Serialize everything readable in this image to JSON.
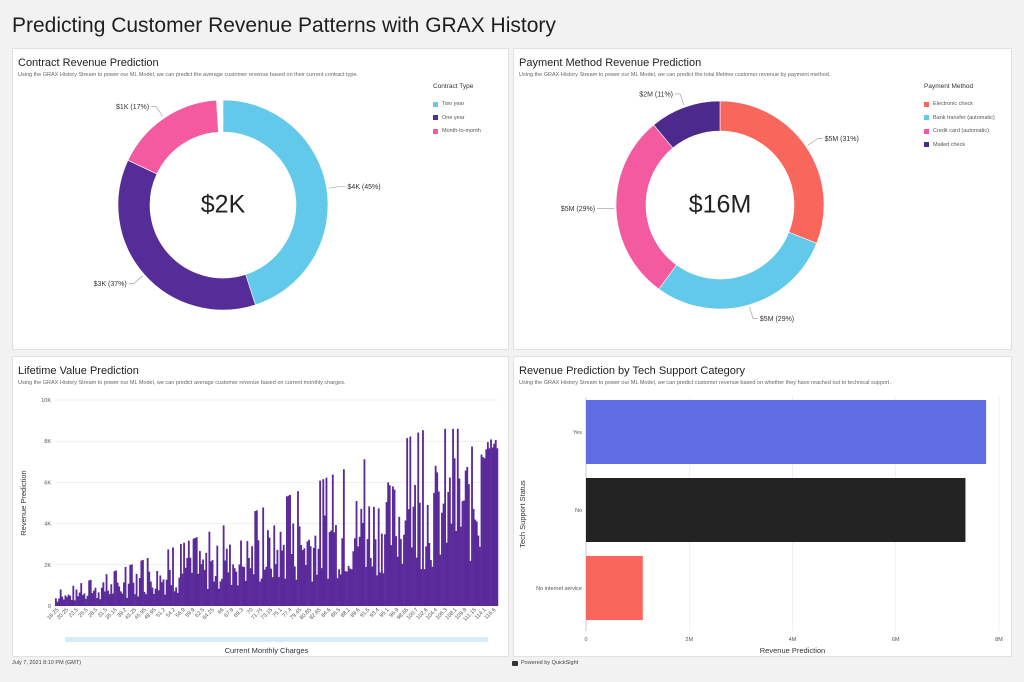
{
  "page": {
    "title": "Predicting Customer Revenue Patterns with GRAX History"
  },
  "footer": {
    "date": "July 7, 2021 8:10 PM (GMT)",
    "powered": "Powered by QuickSight"
  },
  "colors": {
    "teal": "#62c9eb",
    "purple": "#552c98",
    "pink": "#f35aa0",
    "red": "#f8665c",
    "indigo": "#4c2a8c",
    "blue": "#5f6fe3",
    "black": "#232323",
    "lifetime": "#5a2a9a"
  },
  "contract": {
    "title": "Contract Revenue Prediction",
    "subtitle": "Using the GRAX History Stream to power our ML Model, we can predict the average customer revenue based on their current contract type.",
    "legend_title": "Contract Type",
    "center": "$2K"
  },
  "payment": {
    "title": "Payment Method Revenue Prediction",
    "subtitle": "Using the GRAX History Stream to power our ML Model, we can predict the total lifetime customer revenue by payment method.",
    "legend_title": "Payment Method",
    "center": "$16M"
  },
  "lifetime": {
    "title": "Lifetime Value Prediction",
    "subtitle": "Using the GRAX History Stream to power our ML Model, we can predict average customer revenue based on current monthly charges."
  },
  "tech": {
    "title": "Revenue Prediction by Tech Support Category",
    "subtitle": "Using the GRAX History Stream to power our ML Model, we can predict customer revenue based on whether they have reached out to technical support."
  },
  "chart_data": [
    {
      "type": "pie",
      "title": "Contract Revenue Prediction",
      "center_label": "$2K",
      "legend_title": "Contract Type",
      "legend": "right",
      "slices": [
        {
          "name": "Two year",
          "label": "$4K (45%)",
          "percent": 45,
          "color": "#62c9eb"
        },
        {
          "name": "One year",
          "label": "$3K (37%)",
          "percent": 37,
          "color": "#552c98"
        },
        {
          "name": "Month-to-month",
          "label": "$1K (17%)",
          "percent": 17,
          "color": "#f35aa0"
        }
      ]
    },
    {
      "type": "pie",
      "title": "Payment Method Revenue Prediction",
      "center_label": "$16M",
      "legend_title": "Payment Method",
      "legend": "right",
      "slices": [
        {
          "name": "Electronic check",
          "label": "$5M (31%)",
          "percent": 31,
          "color": "#f8665c"
        },
        {
          "name": "Bank transfer (automatic)",
          "label": "$5M (29%)",
          "percent": 29,
          "color": "#62c9eb"
        },
        {
          "name": "Credit card (automatic)",
          "label": "$5M (29%)",
          "percent": 29,
          "color": "#f35aa0"
        },
        {
          "name": "Mailed check",
          "label": "$2M (11%)",
          "percent": 11,
          "color": "#4c2a8c"
        }
      ]
    },
    {
      "type": "bar",
      "title": "Lifetime Value Prediction",
      "xlabel": "Current Monthly Charges",
      "ylabel": "Revenue Prediction",
      "ylim": [
        0,
        10000
      ],
      "yticks": [
        "0",
        "2K",
        "4K",
        "6K",
        "8K",
        "10K"
      ],
      "xlim": [
        18.25,
        118.75
      ],
      "xtick_labels": [
        "18.25",
        "20.25",
        "22.5",
        "25.5",
        "28.5",
        "31.5",
        "35.15",
        "39.2",
        "43.25",
        "45.95",
        "48.95",
        "51.2",
        "54.2",
        "56.9",
        "59.9",
        "62.5",
        "64.25",
        "66",
        "67.9",
        "69.3",
        "70",
        "71.75",
        "73.15",
        "75.1",
        "77.4",
        "79.45",
        "80.85",
        "82.65",
        "84.6",
        "86.5",
        "88.1",
        "89.6",
        "91.5",
        "93.4",
        "95.1",
        "96.9",
        "98.65",
        "100.7",
        "102.6",
        "104.4",
        "106.3",
        "108.1",
        "109.9",
        "111.15",
        "114.1",
        "116.6"
      ],
      "grid": true,
      "trend": {
        "start": 600,
        "end": 8300,
        "min_fraction": 0.25,
        "max_spike": 1.25,
        "bar_count": 280
      }
    },
    {
      "type": "bar",
      "orientation": "horizontal",
      "title": "Revenue Prediction by Tech Support Category",
      "xlabel": "Revenue Prediction",
      "ylabel": "Tech Support Status",
      "xlim": [
        0,
        8000000
      ],
      "xticks": [
        "0",
        "2M",
        "4M",
        "6M",
        "8M"
      ],
      "categories": [
        "Yes",
        "No",
        "No internet service"
      ],
      "values": [
        7750000,
        7350000,
        1100000
      ],
      "colors": [
        "#5f6fe3",
        "#232323",
        "#f8665c"
      ],
      "grid": true
    }
  ]
}
